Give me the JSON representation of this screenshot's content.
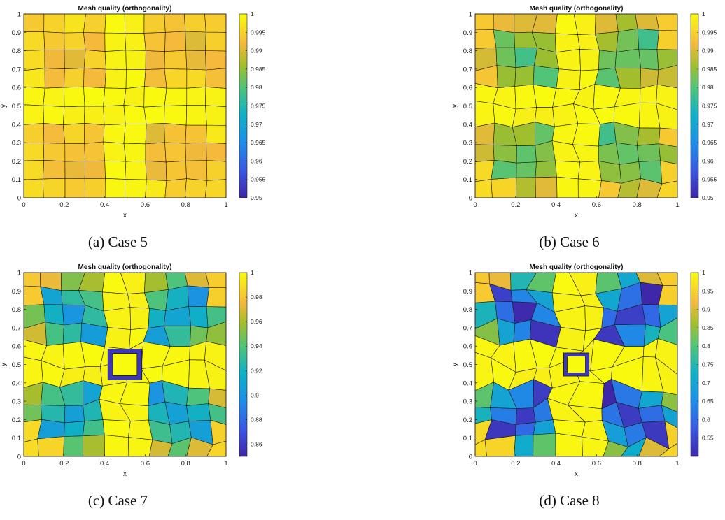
{
  "chart_data": [
    {
      "type": "heatmap",
      "panel": "a",
      "title": "Mesh quality (orthogonality)",
      "xlabel": "x",
      "ylabel": "y",
      "xlim": [
        0,
        1
      ],
      "ylim": [
        0,
        1
      ],
      "xticks": [
        "0",
        "0.2",
        "0.4",
        "0.6",
        "0.8",
        "1"
      ],
      "yticks": [
        "0",
        "0.1",
        "0.2",
        "0.3",
        "0.4",
        "0.5",
        "0.6",
        "0.7",
        "0.8",
        "0.9",
        "1"
      ],
      "colorbar_range": [
        0.95,
        1
      ],
      "colorbar_ticks": [
        "0.95",
        "0.955",
        "0.96",
        "0.965",
        "0.97",
        "0.975",
        "0.98",
        "0.985",
        "0.99",
        "0.995",
        "1"
      ],
      "grid_size": [
        10,
        10
      ],
      "node_distortion": 0.15,
      "warp_strength": 0,
      "hole_half_width": 0,
      "caption": "(a) Case 5"
    },
    {
      "type": "heatmap",
      "panel": "b",
      "title": "Mesh quality (orthogonality)",
      "xlabel": "x",
      "ylabel": "y",
      "xlim": [
        0,
        1
      ],
      "ylim": [
        0,
        1
      ],
      "xticks": [
        "0",
        "0.2",
        "0.4",
        "0.6",
        "0.8",
        "1"
      ],
      "yticks": [
        "0",
        "0.1",
        "0.2",
        "0.3",
        "0.4",
        "0.5",
        "0.6",
        "0.7",
        "0.8",
        "0.9",
        "1"
      ],
      "colorbar_range": [
        0.95,
        1
      ],
      "colorbar_ticks": [
        "0.95",
        "0.955",
        "0.96",
        "0.965",
        "0.97",
        "0.975",
        "0.98",
        "0.985",
        "0.99",
        "0.995",
        "1"
      ],
      "grid_size": [
        10,
        10
      ],
      "node_distortion": 0.4,
      "warp_strength": 0.3,
      "hole_half_width": 0,
      "caption": "(b) Case 6"
    },
    {
      "type": "heatmap",
      "panel": "c",
      "title": "Mesh quality (orthogonality)",
      "xlabel": "x",
      "ylabel": "y",
      "xlim": [
        0,
        1
      ],
      "ylim": [
        0,
        1
      ],
      "xticks": [
        "0",
        "0.2",
        "0.4",
        "0.6",
        "0.8",
        "1"
      ],
      "yticks": [
        "0",
        "0.1",
        "0.2",
        "0.3",
        "0.4",
        "0.5",
        "0.6",
        "0.7",
        "0.8",
        "0.9",
        "1"
      ],
      "colorbar_range": [
        0.85,
        1
      ],
      "colorbar_ticks": [
        "0.86",
        "0.88",
        "0.9",
        "0.92",
        "0.94",
        "0.96",
        "0.98",
        "1"
      ],
      "grid_size": [
        10,
        10
      ],
      "node_distortion": 0.5,
      "warp_strength": 0.6,
      "hole_half_width": 0.06,
      "caption": "(c) Case 7"
    },
    {
      "type": "heatmap",
      "panel": "d",
      "title": "Mesh quality (orthogonality)",
      "xlabel": "x",
      "ylabel": "y",
      "xlim": [
        0,
        1
      ],
      "ylim": [
        0,
        1
      ],
      "xticks": [
        "0",
        "0.2",
        "0.4",
        "0.6",
        "0.8",
        "1"
      ],
      "yticks": [
        "0",
        "0.1",
        "0.2",
        "0.3",
        "0.4",
        "0.5",
        "0.6",
        "0.7",
        "0.8",
        "0.9",
        "1"
      ],
      "colorbar_range": [
        0.5,
        1
      ],
      "colorbar_ticks": [
        "0.55",
        "0.6",
        "0.65",
        "0.7",
        "0.75",
        "0.8",
        "0.85",
        "0.9",
        "0.95",
        "1"
      ],
      "grid_size": [
        10,
        10
      ],
      "node_distortion": 0.8,
      "warp_strength": 1,
      "hole_half_width": 0.045,
      "caption": "(d) Case 8"
    }
  ]
}
